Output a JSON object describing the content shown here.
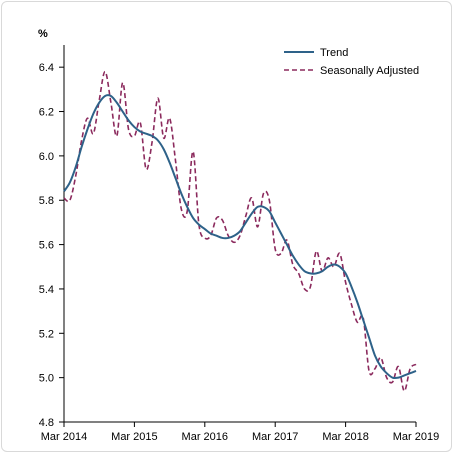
{
  "chart_data": {
    "type": "line",
    "title": "",
    "xlabel": "",
    "ylabel": "%",
    "ylim": [
      4.8,
      6.5
    ],
    "yticks": [
      "6.4",
      "6.2",
      "6.0",
      "5.8",
      "5.6",
      "5.4",
      "5.2",
      "5.0",
      "4.8"
    ],
    "xticks": [
      "Mar 2014",
      "Mar 2015",
      "Mar 2016",
      "Mar 2017",
      "Mar 2018",
      "Mar 2019"
    ],
    "x_start": "Mar 2014",
    "x_end": "Mar 2019",
    "grid": false,
    "legend_position": "top-right",
    "series": [
      {
        "name": "Trend",
        "color": "#2e6289",
        "style": "solid",
        "values": [
          5.84,
          5.88,
          5.95,
          6.04,
          6.12,
          6.19,
          6.24,
          6.27,
          6.27,
          6.24,
          6.2,
          6.16,
          6.13,
          6.11,
          6.1,
          6.09,
          6.07,
          6.03,
          5.97,
          5.9,
          5.83,
          5.77,
          5.72,
          5.69,
          5.67,
          5.65,
          5.64,
          5.63,
          5.63,
          5.64,
          5.66,
          5.7,
          5.74,
          5.77,
          5.77,
          5.75,
          5.7,
          5.65,
          5.6,
          5.55,
          5.51,
          5.48,
          5.47,
          5.47,
          5.48,
          5.5,
          5.51,
          5.5,
          5.47,
          5.41,
          5.34,
          5.26,
          5.18,
          5.1,
          5.05,
          5.02,
          5.0,
          5.0,
          5.01,
          5.02,
          5.03
        ]
      },
      {
        "name": "Seasonally Adjusted",
        "color": "#8b2a5d",
        "style": "dashed",
        "values": [
          5.81,
          5.8,
          5.91,
          6.07,
          6.17,
          6.1,
          6.25,
          6.38,
          6.24,
          6.09,
          6.33,
          6.12,
          6.09,
          6.15,
          5.94,
          6.06,
          6.26,
          6.08,
          6.17,
          5.98,
          5.76,
          5.75,
          6.02,
          5.69,
          5.63,
          5.64,
          5.72,
          5.71,
          5.64,
          5.61,
          5.64,
          5.73,
          5.81,
          5.68,
          5.83,
          5.8,
          5.58,
          5.56,
          5.62,
          5.51,
          5.47,
          5.4,
          5.41,
          5.57,
          5.48,
          5.54,
          5.5,
          5.56,
          5.43,
          5.33,
          5.25,
          5.27,
          5.03,
          5.04,
          5.09,
          5.0,
          4.98,
          5.05,
          4.94,
          5.04,
          5.06
        ]
      }
    ]
  }
}
